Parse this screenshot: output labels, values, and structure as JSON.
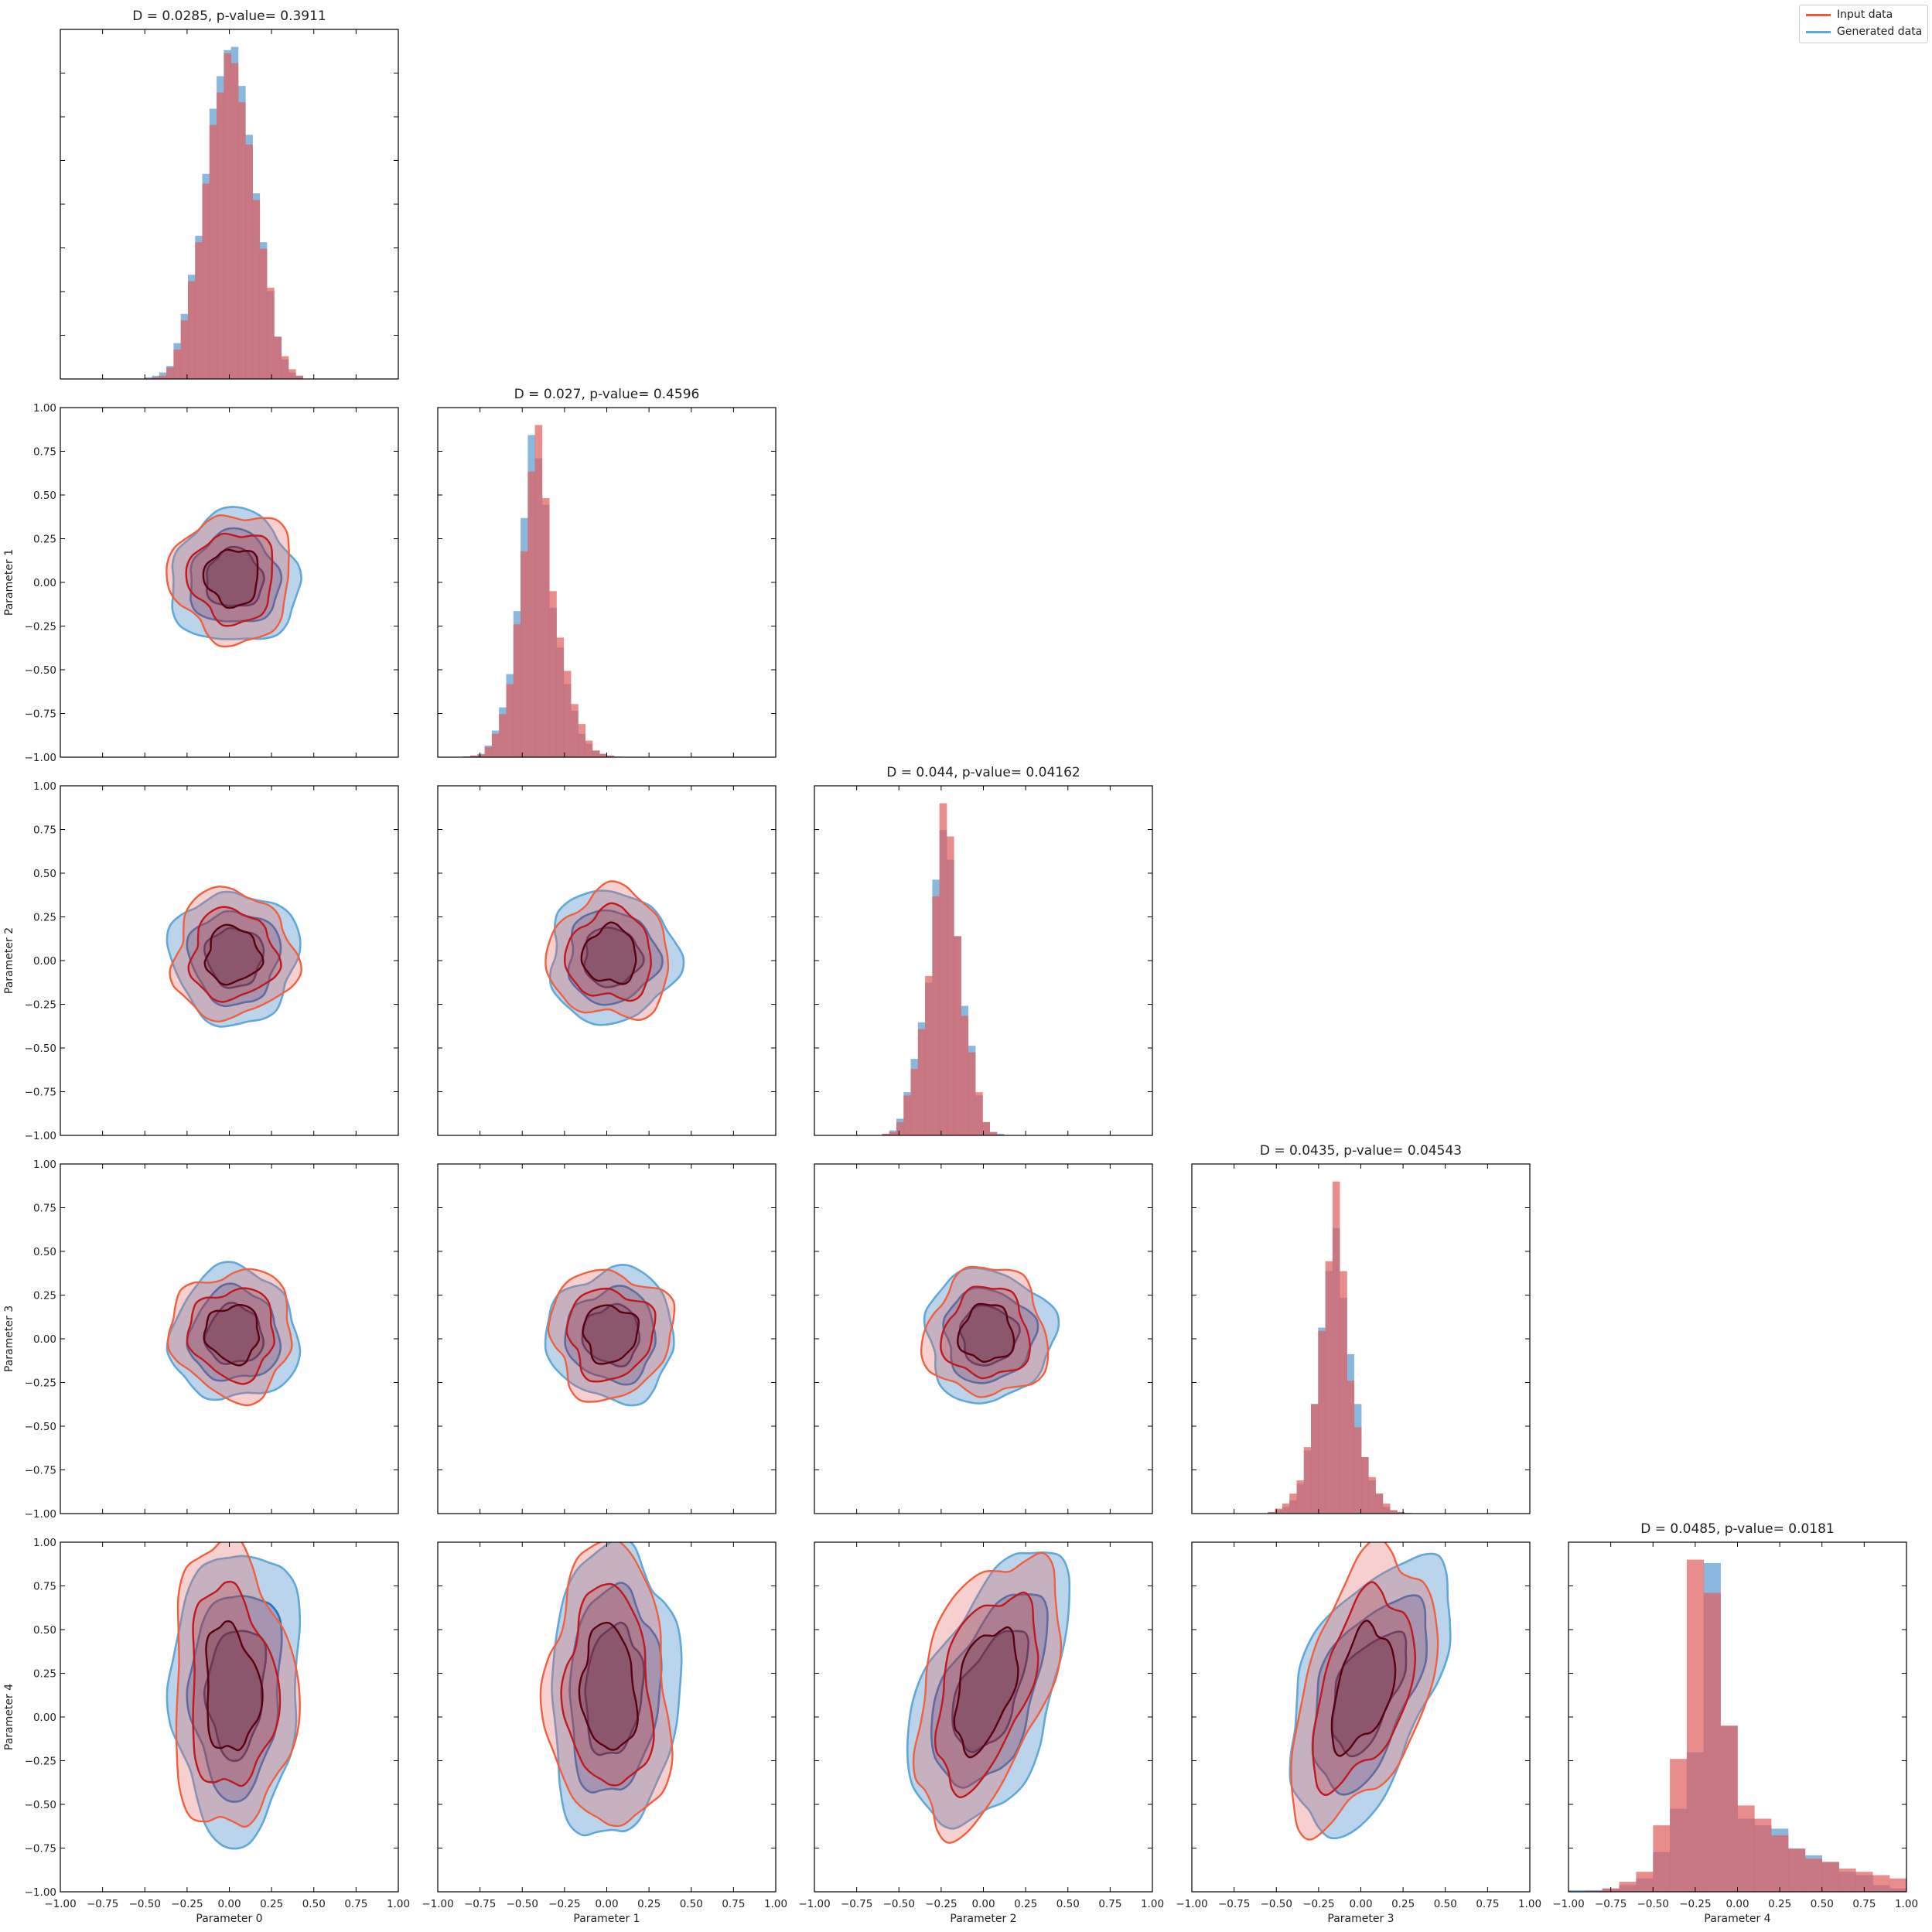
{
  "chart_data": {
    "type": "corner-plot",
    "parameters": [
      "Parameter 0",
      "Parameter 1",
      "Parameter 2",
      "Parameter 3",
      "Parameter 4"
    ],
    "axis_range": [
      -1.0,
      1.0
    ],
    "ticks": [
      -1.0,
      -0.75,
      -0.5,
      -0.25,
      0.0,
      0.25,
      0.5,
      0.75,
      1.0
    ],
    "tick_labels": [
      "−1.00",
      "−0.75",
      "−0.50",
      "−0.25",
      "0.00",
      "0.25",
      "0.50",
      "0.75",
      "1.00"
    ],
    "legend": {
      "placement": "top-right",
      "entries": [
        {
          "label": "Input data",
          "color": "#ee5a3f"
        },
        {
          "label": "Generated data",
          "color": "#5ea8d8"
        }
      ]
    },
    "colors": {
      "input_fill": "#e06060",
      "generated_fill": "#5b9bd0",
      "input_line_outer": "#f06040",
      "input_line_mid": "#c0181e",
      "input_line_inner": "#5a0010",
      "generated_line_outer": "#60a8d8",
      "generated_line_mid": "#2a70b8",
      "generated_line_inner": "#0a2a70",
      "overlap": "#7d7aa0"
    },
    "diagonal_titles": [
      "D = 0.0285, p-value= 0.3911",
      "D = 0.027, p-value= 0.4596",
      "D = 0.044, p-value= 0.04162",
      "D = 0.0435, p-value= 0.04543",
      "D = 0.0485, p-value= 0.0181"
    ],
    "histograms": [
      {
        "param": 0,
        "bin_start": -0.5,
        "bin_width": 0.0425,
        "input": [
          0.0,
          0.005,
          0.01,
          0.035,
          0.09,
          0.18,
          0.3,
          0.42,
          0.6,
          0.78,
          0.88,
          1.0,
          0.97,
          0.85,
          0.72,
          0.55,
          0.4,
          0.28,
          0.13,
          0.07,
          0.03,
          0.01,
          0.0
        ],
        "generated": [
          0.005,
          0.01,
          0.02,
          0.04,
          0.11,
          0.2,
          0.32,
          0.44,
          0.63,
          0.83,
          0.93,
          1.01,
          1.02,
          0.9,
          0.75,
          0.57,
          0.42,
          0.27,
          0.13,
          0.06,
          0.02,
          0.01,
          0.0
        ]
      },
      {
        "param": 1,
        "bin_start": -0.85,
        "bin_width": 0.0425,
        "input": [
          0.002,
          0.005,
          0.008,
          0.03,
          0.07,
          0.13,
          0.22,
          0.4,
          0.62,
          0.86,
          1.0,
          0.78,
          0.5,
          0.36,
          0.26,
          0.16,
          0.1,
          0.05,
          0.02,
          0.01,
          0.005,
          0.0
        ],
        "generated": [
          0.002,
          0.005,
          0.01,
          0.035,
          0.08,
          0.15,
          0.25,
          0.44,
          0.72,
          0.97,
          0.9,
          0.76,
          0.45,
          0.33,
          0.22,
          0.14,
          0.07,
          0.04,
          0.02,
          0.01,
          0.005,
          0.002
        ]
      },
      {
        "param": 2,
        "bin_start": -0.6,
        "bin_width": 0.0425,
        "input": [
          0.005,
          0.01,
          0.04,
          0.12,
          0.2,
          0.32,
          0.48,
          0.72,
          1.0,
          0.9,
          0.6,
          0.36,
          0.25,
          0.13,
          0.04,
          0.01,
          0.0
        ],
        "generated": [
          0.005,
          0.015,
          0.05,
          0.13,
          0.23,
          0.34,
          0.46,
          0.77,
          0.92,
          0.83,
          0.6,
          0.39,
          0.27,
          0.12,
          0.04,
          0.01,
          0.005
        ]
      },
      {
        "param": 3,
        "bin_start": -0.55,
        "bin_width": 0.0425,
        "input": [
          0.005,
          0.015,
          0.03,
          0.06,
          0.1,
          0.2,
          0.33,
          0.55,
          0.76,
          1.0,
          0.73,
          0.4,
          0.26,
          0.17,
          0.11,
          0.06,
          0.03,
          0.01,
          0.005,
          0.0
        ],
        "generated": [
          0.005,
          0.01,
          0.02,
          0.04,
          0.09,
          0.19,
          0.33,
          0.56,
          0.73,
          0.86,
          0.65,
          0.48,
          0.33,
          0.17,
          0.1,
          0.06,
          0.02,
          0.01,
          0.005,
          0.002
        ]
      },
      {
        "param": 4,
        "bin_start": -1.0,
        "bin_width": 0.1,
        "input": [
          0.0,
          0.003,
          0.01,
          0.03,
          0.06,
          0.2,
          0.4,
          1.0,
          0.9,
          0.5,
          0.26,
          0.22,
          0.17,
          0.13,
          0.1,
          0.09,
          0.07,
          0.06,
          0.05,
          0.04
        ],
        "generated": [
          0.005,
          0.005,
          0.01,
          0.02,
          0.04,
          0.12,
          0.25,
          0.42,
          0.99,
          0.5,
          0.22,
          0.2,
          0.19,
          0.13,
          0.11,
          0.09,
          0.06,
          0.05,
          0.02,
          0.01
        ]
      }
    ]
  }
}
